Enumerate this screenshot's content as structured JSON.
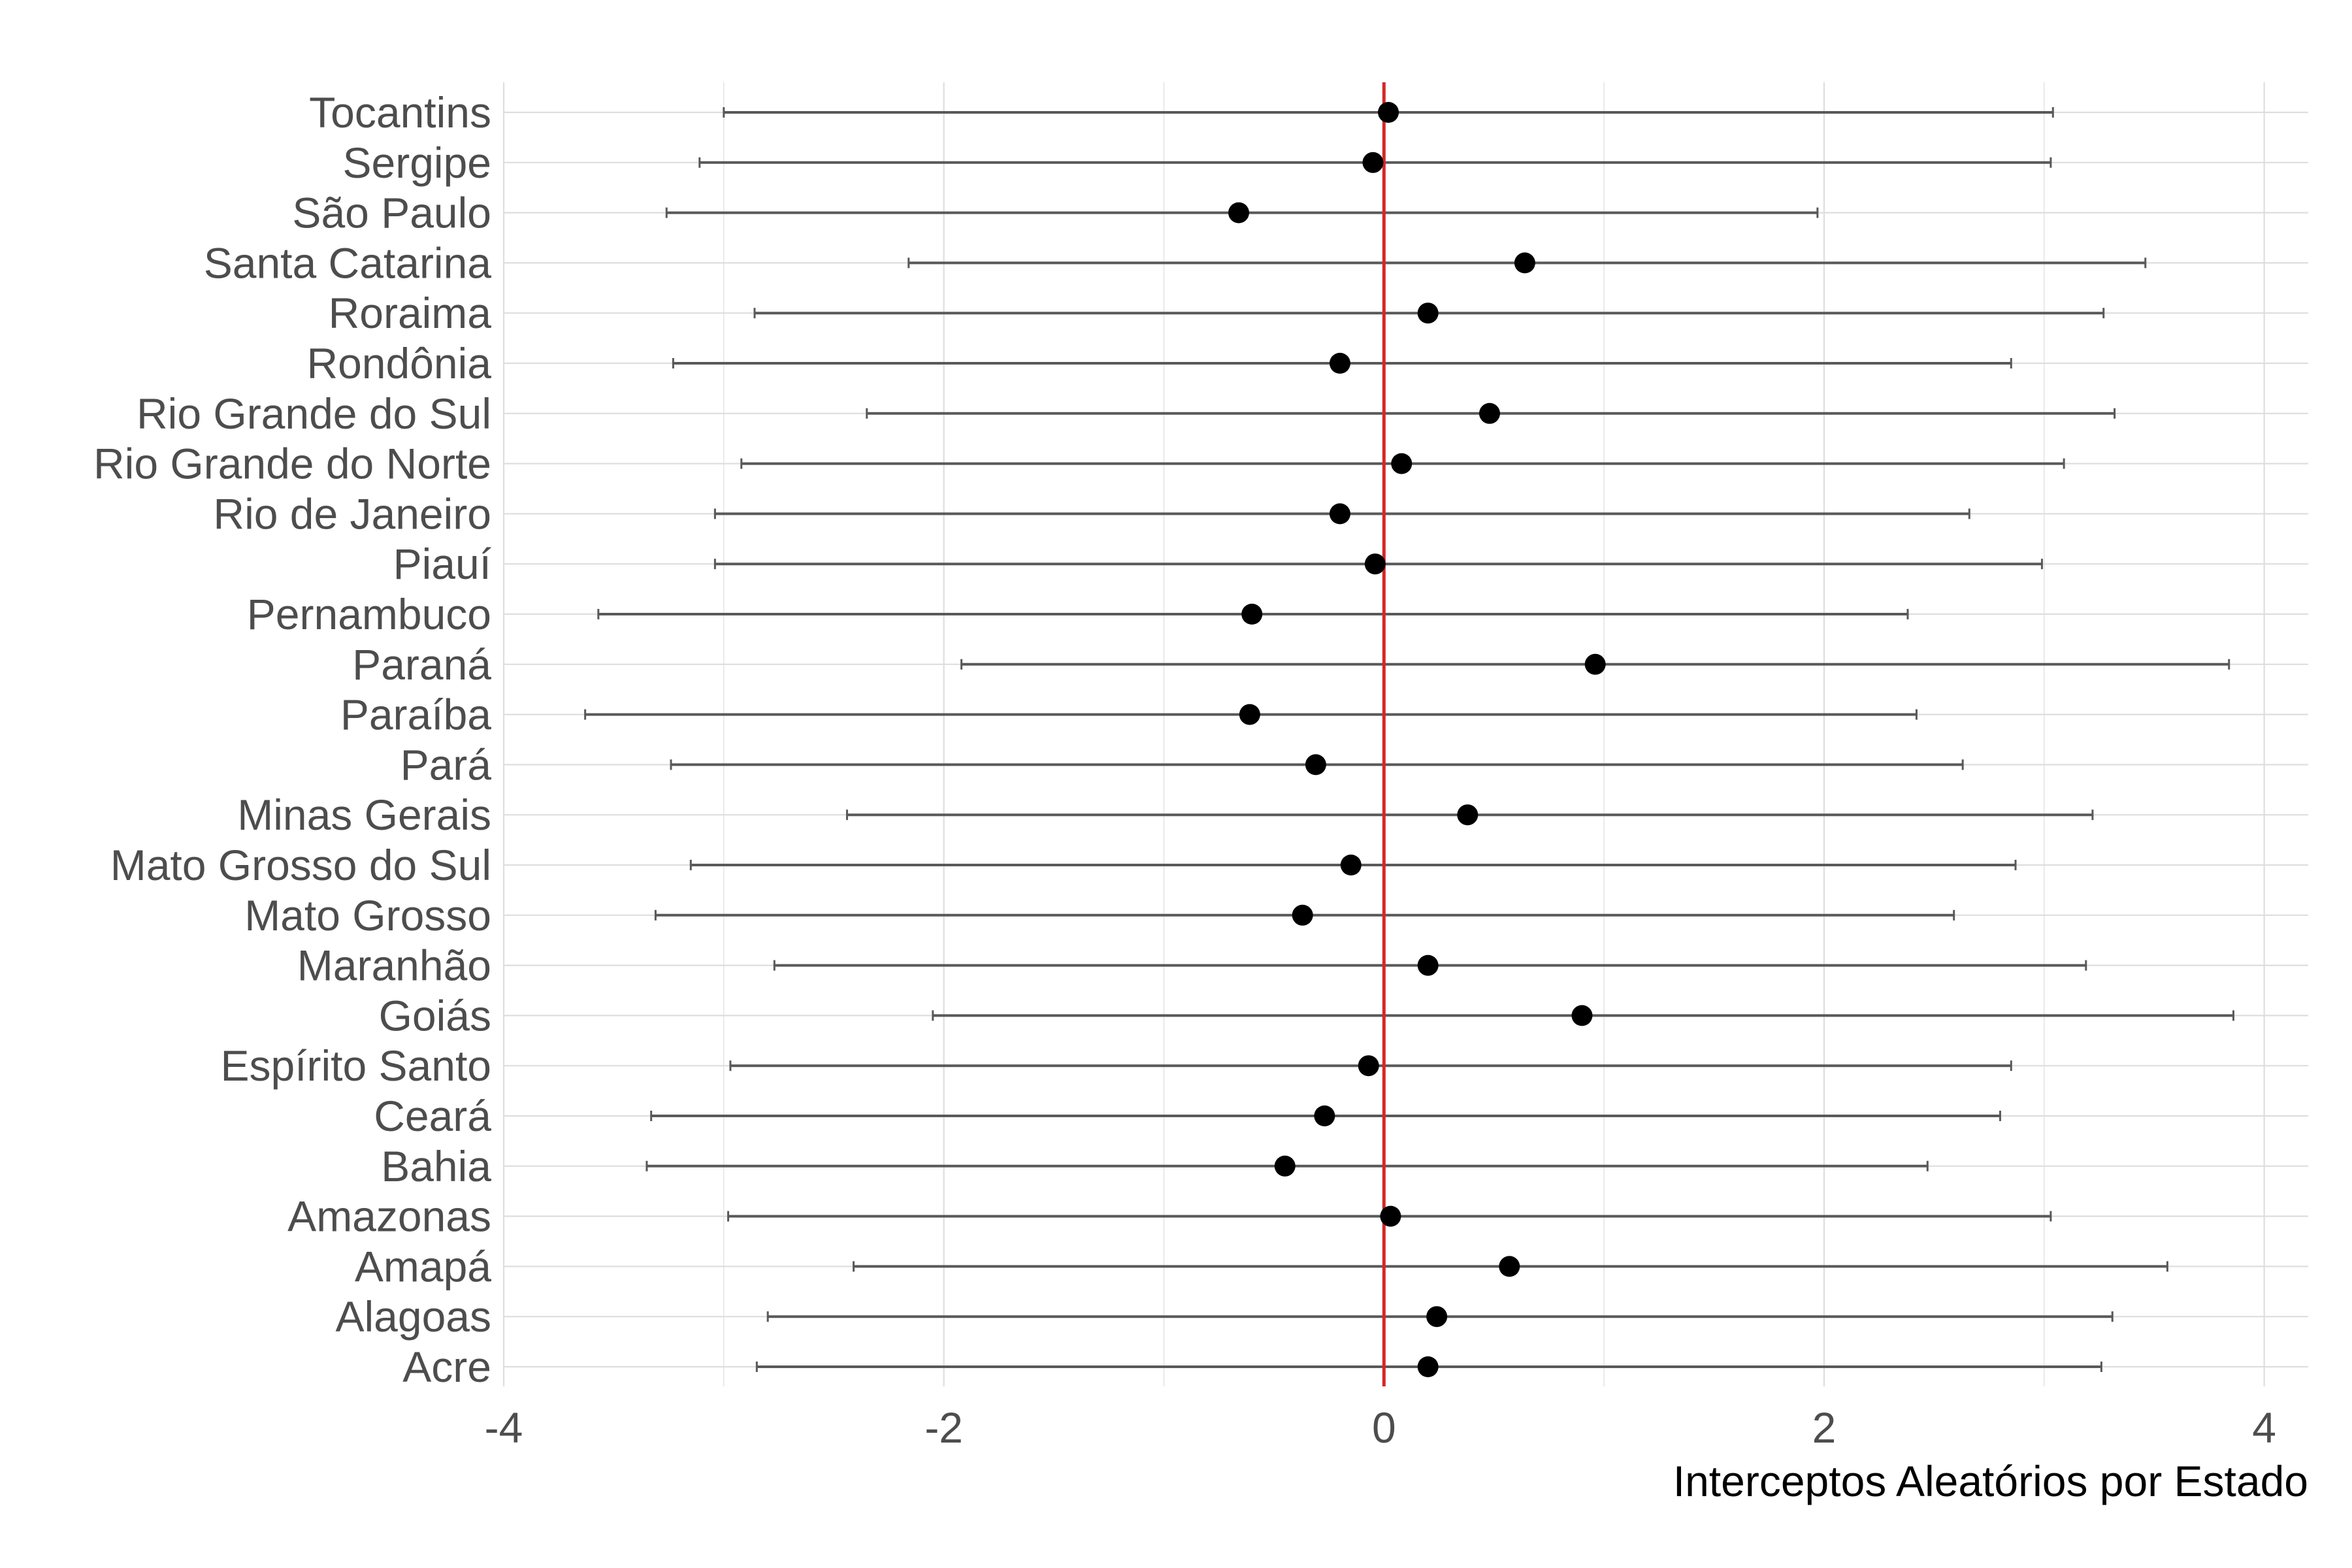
{
  "chart_data": {
    "type": "scatter",
    "subtype": "dot-and-whisker",
    "orientation": "horizontal",
    "title": "",
    "xlabel": "Interceptos Aleatórios por Estado",
    "ylabel": "",
    "xlim": [
      -4.0,
      4.2
    ],
    "xticks": [
      -4,
      -2,
      0,
      2,
      4
    ],
    "xtick_labels": [
      "-4",
      "-2",
      "0",
      "2",
      "4"
    ],
    "reference_line": {
      "x": 0,
      "color": "#d62728"
    },
    "grid": true,
    "colors": {
      "point": "#000000",
      "errorbar": "#595959",
      "grid": "#dedede",
      "reference": "#d62728"
    },
    "categories": [
      "Tocantins",
      "Sergipe",
      "São Paulo",
      "Santa Catarina",
      "Roraima",
      "Rondônia",
      "Rio Grande do Sul",
      "Rio Grande do Norte",
      "Rio de Janeiro",
      "Piauí",
      "Pernambuco",
      "Paraná",
      "Paraíba",
      "Pará",
      "Minas Gerais",
      "Mato Grosso do Sul",
      "Mato Grosso",
      "Maranhão",
      "Goiás",
      "Espírito Santo",
      "Ceará",
      "Bahia",
      "Amazonas",
      "Amapá",
      "Alagoas",
      "Acre"
    ],
    "estimate": [
      0.02,
      -0.05,
      -0.66,
      0.64,
      0.2,
      -0.2,
      0.48,
      0.08,
      -0.2,
      -0.04,
      -0.6,
      0.96,
      -0.61,
      -0.31,
      0.38,
      -0.15,
      -0.37,
      0.2,
      0.9,
      -0.07,
      -0.27,
      -0.45,
      0.03,
      0.57,
      0.24,
      0.2
    ],
    "lower": [
      -3.0,
      -3.11,
      -3.26,
      -2.16,
      -2.86,
      -3.23,
      -2.35,
      -2.92,
      -3.04,
      -3.04,
      -3.57,
      -1.92,
      -3.63,
      -3.24,
      -2.44,
      -3.15,
      -3.31,
      -2.77,
      -2.05,
      -2.97,
      -3.33,
      -3.35,
      -2.98,
      -2.41,
      -2.8,
      -2.85
    ],
    "upper": [
      3.04,
      3.03,
      1.97,
      3.46,
      3.27,
      2.85,
      3.32,
      3.09,
      2.66,
      2.99,
      2.38,
      3.84,
      2.42,
      2.63,
      3.22,
      2.87,
      2.59,
      3.19,
      3.86,
      2.85,
      2.8,
      2.47,
      3.03,
      3.56,
      3.31,
      3.26
    ]
  }
}
